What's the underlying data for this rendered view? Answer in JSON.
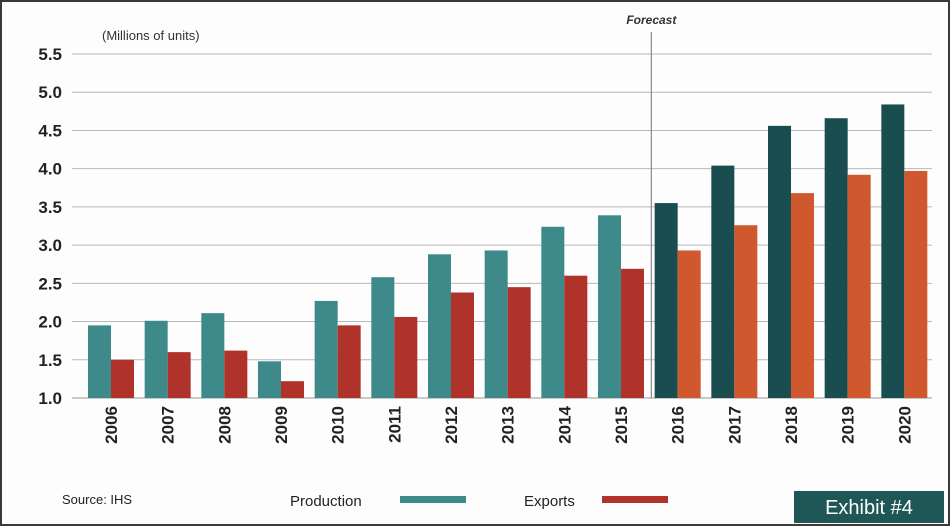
{
  "chart_data": {
    "type": "bar",
    "unit_label": "(Millions of units)",
    "categories": [
      "2006",
      "2007",
      "2008",
      "2009",
      "2010",
      "2011",
      "2012",
      "2013",
      "2014",
      "2015",
      "2016",
      "2017",
      "2018",
      "2019",
      "2020"
    ],
    "series": [
      {
        "name": "Production",
        "values": [
          1.95,
          2.01,
          2.11,
          1.48,
          2.27,
          2.58,
          2.88,
          2.93,
          3.24,
          3.39,
          3.55,
          4.04,
          4.56,
          4.66,
          4.84
        ],
        "color": "#3e8a8a",
        "forecast_color": "#1a4d4f"
      },
      {
        "name": "Exports",
        "values": [
          1.5,
          1.6,
          1.62,
          1.22,
          1.95,
          2.06,
          2.38,
          2.45,
          2.6,
          2.69,
          2.93,
          3.26,
          3.68,
          3.92,
          3.97
        ],
        "color": "#b0332b",
        "forecast_color": "#d0582e"
      }
    ],
    "forecast_label": "Forecast",
    "forecast_start": "2016",
    "ylim": [
      1.0,
      5.5
    ],
    "yticks": [
      "1.0",
      "1.5",
      "2.0",
      "2.5",
      "3.0",
      "3.5",
      "4.0",
      "4.5",
      "5.0",
      "5.5"
    ],
    "grid": true,
    "legend_position": "bottom"
  },
  "footer": {
    "source": "Source: IHS",
    "exhibit": "Exhibit #4"
  },
  "colors": {
    "grid": "#b8b8b8",
    "exhibit_bg": "#1f5757"
  }
}
